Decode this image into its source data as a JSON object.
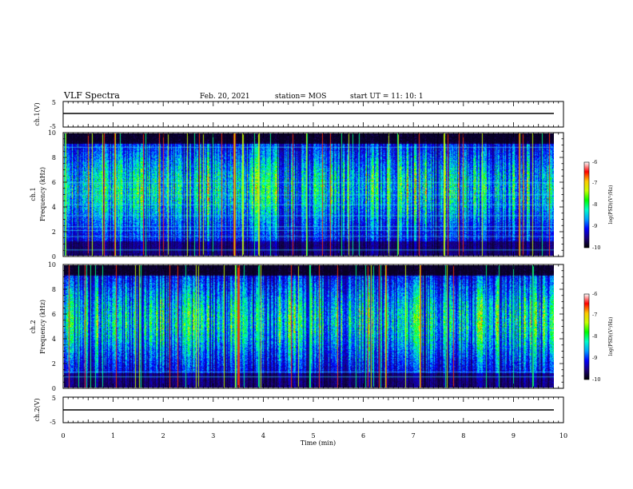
{
  "header": {
    "title": "VLF Spectra",
    "date": "Feb. 20, 2021",
    "station": "station= MOS",
    "start": "start  UT =   11: 10: 1"
  },
  "chart_data": {
    "type": "heatmap",
    "xlabel": "Time  (min)",
    "xlim": [
      0,
      10
    ],
    "xticks": [
      "0",
      "1",
      "2",
      "3",
      "4",
      "5",
      "6",
      "7",
      "8",
      "9",
      "10"
    ],
    "panels": [
      {
        "kind": "waveform",
        "ylabel": "ch.1(V)",
        "ylim": [
          -5,
          5
        ],
        "yticks": [
          "5",
          "-5"
        ]
      },
      {
        "kind": "spectrogram",
        "ylabel_top": "ch.1",
        "ylabel": "Frequency  (kHz)",
        "ylim": [
          0,
          10
        ],
        "yticks": [
          "0",
          "2",
          "4",
          "6",
          "8",
          "10"
        ],
        "colorbar": {
          "label": "log(PSD)(V²/Hz)",
          "range": [
            -10,
            -6
          ],
          "ticks": [
            "-6",
            "-7",
            "-8",
            "-9",
            "-10"
          ]
        }
      },
      {
        "kind": "spectrogram",
        "ylabel_top": "ch.2",
        "ylabel": "Frequency  (kHz)",
        "ylim": [
          0,
          10
        ],
        "yticks": [
          "0",
          "2",
          "4",
          "6",
          "8",
          "10"
        ],
        "colorbar": {
          "label": "log(PSD)(V²/Hz)",
          "range": [
            -10,
            -6
          ],
          "ticks": [
            "-6",
            "-7",
            "-8",
            "-9",
            "-10"
          ]
        }
      },
      {
        "kind": "waveform",
        "ylabel": "ch.2(V)",
        "ylim": [
          -5,
          5
        ],
        "yticks": [
          "5",
          "-5"
        ]
      }
    ],
    "colormap": [
      "#000000",
      "#1a0078",
      "#0000ff",
      "#00a0ff",
      "#00ffc8",
      "#00ff00",
      "#c8ff00",
      "#ffc800",
      "#ff0000",
      "#ffffff"
    ]
  }
}
